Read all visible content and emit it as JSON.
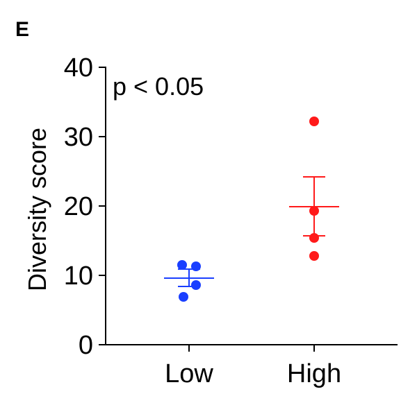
{
  "panel_label": "E",
  "chart_data": {
    "type": "scatter",
    "title": "",
    "xlabel": "",
    "ylabel": "Diversity score",
    "ylim": [
      0,
      40
    ],
    "yticks": [
      0,
      10,
      20,
      30,
      40
    ],
    "categories": [
      "Low",
      "High"
    ],
    "annotation": "p < 0.05",
    "grid": false,
    "legend": "none",
    "series": [
      {
        "category": "Low",
        "color": "#1a3fff",
        "points": [
          11.5,
          11.3,
          8.6,
          6.9
        ],
        "mean": 9.6,
        "sem_low": 8.4,
        "sem_high": 10.9
      },
      {
        "category": "High",
        "color": "#ff1a1a",
        "points": [
          32.2,
          19.3,
          15.4,
          12.8
        ],
        "mean": 19.9,
        "sem_low": 15.7,
        "sem_high": 24.2
      }
    ]
  }
}
